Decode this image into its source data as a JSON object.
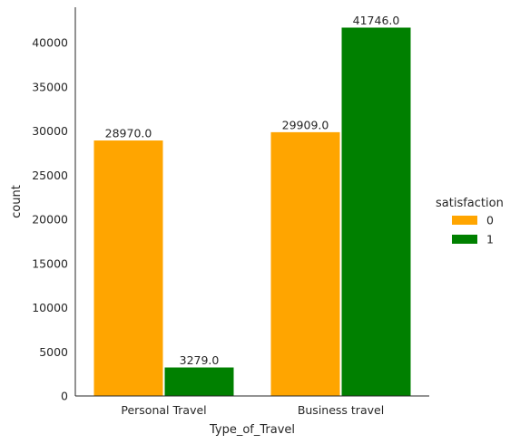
{
  "chart_data": {
    "type": "bar",
    "title": "",
    "xlabel": "Type_of_Travel",
    "ylabel": "count",
    "categories": [
      "Personal Travel",
      "Business travel"
    ],
    "series": [
      {
        "name": "0",
        "values": [
          28970.0,
          29909.0
        ],
        "color": "#ffa500"
      },
      {
        "name": "1",
        "values": [
          3279.0,
          41746.0
        ],
        "color": "#008000"
      }
    ],
    "data_labels": [
      [
        "28970.0",
        "29909.0"
      ],
      [
        "3279.0",
        "41746.0"
      ]
    ],
    "ylim": [
      0,
      44000
    ],
    "yticks": [
      0,
      5000,
      10000,
      15000,
      20000,
      25000,
      30000,
      35000,
      40000
    ],
    "grid": false,
    "legend": {
      "title": "satisfaction",
      "placement": "right"
    }
  }
}
